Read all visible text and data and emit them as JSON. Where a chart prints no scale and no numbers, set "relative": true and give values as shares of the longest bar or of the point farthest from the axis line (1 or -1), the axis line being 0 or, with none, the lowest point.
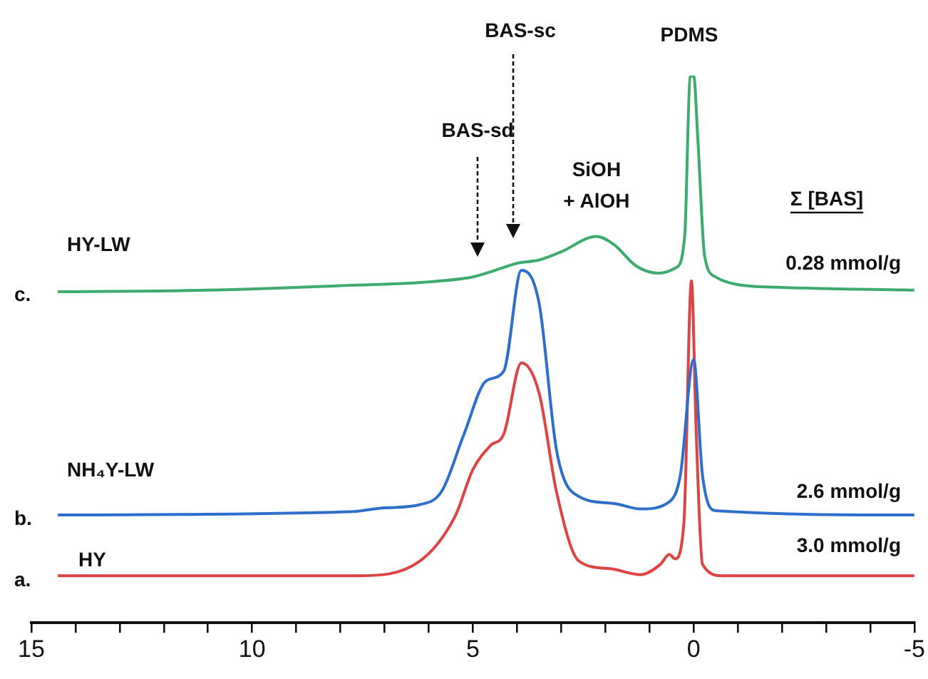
{
  "chart_data": {
    "type": "line",
    "relative": true,
    "legend": false,
    "grid": false,
    "marker": "none",
    "line_style": "solid",
    "xlim": [
      15,
      -5
    ],
    "xticks": [
      15,
      {
        "value": 14,
        "label": null
      },
      {
        "value": 13,
        "label": null
      },
      {
        "value": 12,
        "label": null
      },
      {
        "value": 11,
        "label": null
      },
      10,
      {
        "value": 9,
        "label": null
      },
      {
        "value": 8,
        "label": null
      },
      {
        "value": 7,
        "label": null
      },
      {
        "value": 6,
        "label": null
      },
      5,
      {
        "value": 4,
        "label": null
      },
      {
        "value": 3,
        "label": null
      },
      {
        "value": 2,
        "label": null
      },
      {
        "value": 1,
        "label": null
      },
      0,
      {
        "value": -1,
        "label": null
      },
      {
        "value": -2,
        "label": null
      },
      {
        "value": -3,
        "label": null
      },
      {
        "value": -4,
        "label": null
      },
      -5
    ],
    "series": [
      {
        "name": "HY-LW",
        "color": "#3daa6e",
        "x": [
          14.4,
          11,
          8,
          6,
          5,
          4.5,
          4,
          3.5,
          3,
          2.2,
          1.8,
          1.3,
          0.8,
          0.4,
          0.2,
          0.08,
          0,
          -0.1,
          -0.25,
          -0.5,
          -1,
          -2,
          -5
        ],
        "values": [
          0.605,
          0.608,
          0.616,
          0.623,
          0.632,
          0.644,
          0.657,
          0.663,
          0.678,
          0.706,
          0.691,
          0.652,
          0.639,
          0.649,
          0.709,
          0.997,
          1,
          0.877,
          0.67,
          0.632,
          0.618,
          0.613,
          0.608
        ]
      },
      {
        "name": "NH₄Y-LW",
        "color": "#2f6fcc",
        "x": [
          14.4,
          7.8,
          7,
          6.2,
          5.7,
          5.2,
          4.7,
          4.3,
          3.9,
          3.5,
          3.1,
          2.6,
          1.8,
          1.2,
          0.55,
          0.3,
          0,
          -0.2,
          -0.5,
          -5
        ],
        "values": [
          0.197,
          0.203,
          0.21,
          0.216,
          0.241,
          0.345,
          0.442,
          0.46,
          0.644,
          0.584,
          0.313,
          0.231,
          0.218,
          0.208,
          0.221,
          0.27,
          0.481,
          0.27,
          0.205,
          0.197
        ]
      },
      {
        "name": "HY",
        "color": "#dd4444",
        "x": [
          14.4,
          7.6,
          6.2,
          5.4,
          5,
          4.6,
          4.3,
          3.9,
          3.5,
          3.1,
          2.6,
          1.9,
          1.2,
          0.75,
          0.55,
          0.42,
          0.22,
          0.05,
          -0.06,
          -0.2,
          -0.65,
          -5
        ],
        "values": [
          0.086,
          0.086,
          0.113,
          0.195,
          0.28,
          0.324,
          0.345,
          0.475,
          0.42,
          0.237,
          0.113,
          0.099,
          0.088,
          0.107,
          0.125,
          0.117,
          0.183,
          0.625,
          0.345,
          0.107,
          0.086,
          0.086
        ]
      }
    ],
    "annotations": [
      {
        "text": "PDMS",
        "x": 0.1,
        "y": 0.997
      },
      "BAS-sc",
      "BAS-sd",
      {
        "text": "SiOH\n+ AlOH",
        "x": 2.2,
        "y": 0.706
      },
      "Σ [BAS]",
      "0.28 mmol/g",
      "2.6 mmol/g",
      "3.0 mmol/g",
      "c.",
      "b.",
      "a."
    ]
  }
}
